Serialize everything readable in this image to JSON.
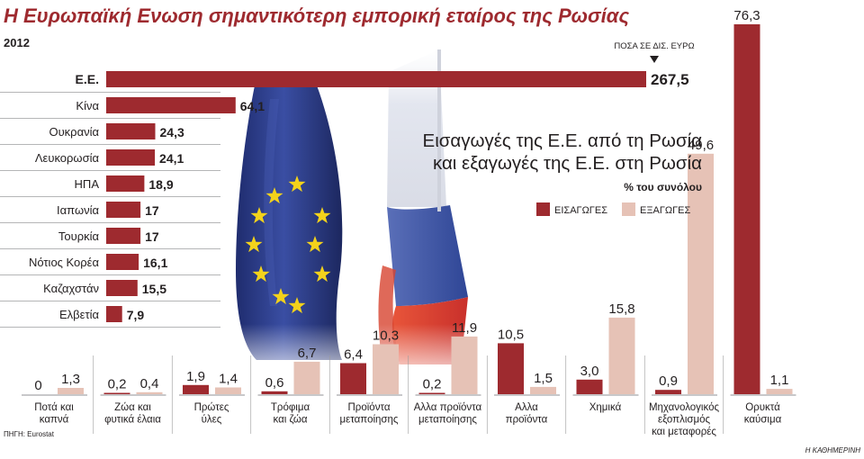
{
  "header": {
    "title": "Η Ευρωπαϊκή Ενωση σημαντικότερη εμπορική εταίρος της Ρωσίας",
    "year": "2012",
    "unit_note": "ΠΟΣΑ ΣΕ ΔΙΣ. ΕΥΡΩ"
  },
  "subchart": {
    "title_line1": "Εισαγωγές της Ε.Ε. από τη Ρωσία",
    "title_line2": "και εξαγωγές της Ε.Ε. στη Ρωσία",
    "unit": "% του συνόλου",
    "legend_imports": "ΕΙΣΑΓΩΓΕΣ",
    "legend_exports": "ΕΞΑΓΩΓΕΣ"
  },
  "footer": {
    "source": "ΠΗΓΗ: Eurostat",
    "credit": "Η ΚΑΘΗΜΕΡΙΝΗ"
  },
  "colors": {
    "imports": "#9e2a2f",
    "exports": "#e6c2b6",
    "eu_flag": "#2d3e8f",
    "star": "#f3d21b"
  },
  "icons": [
    "eu-flag-icon",
    "russia-flag-icon"
  ],
  "chart_data": [
    {
      "type": "bar",
      "orientation": "horizontal",
      "title": "Η Ευρωπαϊκή Ενωση σημαντικότερη εμπορική εταίρος της Ρωσίας",
      "categories": [
        "Ε.Ε.",
        "Κίνα",
        "Ουκρανία",
        "Λευκορωσία",
        "ΗΠΑ",
        "Ιαπωνία",
        "Τουρκία",
        "Νότιος Κορέα",
        "Καζαχστάν",
        "Ελβετία"
      ],
      "values": [
        267.5,
        64.1,
        24.3,
        24.1,
        18.9,
        17,
        17,
        16.1,
        15.5,
        7.9
      ],
      "labels": [
        "267,5",
        "64,1",
        "24,3",
        "24,1",
        "18,9",
        "17",
        "17",
        "16,1",
        "15,5",
        "7,9"
      ],
      "unit": "ΠΟΣΑ ΣΕ ΔΙΣ. ΕΥΡΩ",
      "xlim": [
        0,
        267.5
      ]
    },
    {
      "type": "bar",
      "orientation": "vertical",
      "title": "Εισαγωγές της Ε.Ε. από τη Ρωσία και εξαγωγές της Ε.Ε. στη Ρωσία",
      "unit": "% του συνόλου",
      "categories": [
        [
          "Ποτά και",
          "καπνά"
        ],
        [
          "Ζώα και",
          "φυτικά έλαια"
        ],
        [
          "Πρώτες",
          "ύλες"
        ],
        [
          "Τρόφιμα",
          "και ζώα"
        ],
        [
          "Προϊόντα",
          "μεταποίησης"
        ],
        [
          "Αλλα προϊόντα",
          "μεταποίησης"
        ],
        [
          "Αλλα",
          "προϊόντα"
        ],
        [
          "Χημικά"
        ],
        [
          "Μηχανολογικός",
          "εξοπλισμός",
          "και μεταφορές"
        ],
        [
          "Ορυκτά",
          "καύσιμα"
        ]
      ],
      "series": [
        {
          "name": "ΕΙΣΑΓΩΓΕΣ",
          "values": [
            0,
            0.2,
            1.9,
            0.6,
            6.4,
            0.2,
            10.5,
            3.0,
            0.9,
            76.3
          ],
          "labels": [
            "0",
            "0,2",
            "1,9",
            "0,6",
            "6,4",
            "0,2",
            "10,5",
            "3,0",
            "0,9",
            "76,3"
          ]
        },
        {
          "name": "ΕΞΑΓΩΓΕΣ",
          "values": [
            1.3,
            0.4,
            1.4,
            6.7,
            10.3,
            11.9,
            1.5,
            15.8,
            49.6,
            1.1
          ],
          "labels": [
            "1,3",
            "0,4",
            "1,4",
            "6,7",
            "10,3",
            "11,9",
            "1,5",
            "15,8",
            "49,6",
            "1,1"
          ]
        }
      ],
      "ylim": [
        0,
        76.3
      ],
      "legend": "top-right"
    }
  ]
}
